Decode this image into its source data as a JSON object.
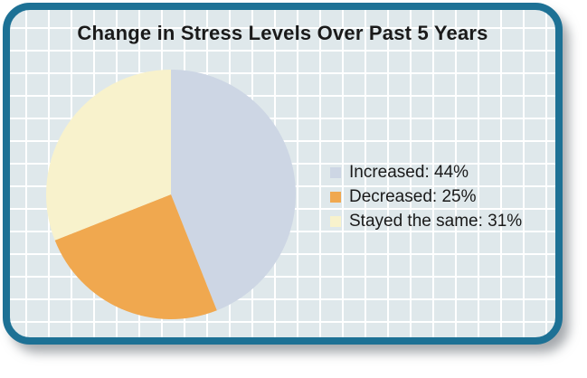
{
  "chart_data": {
    "type": "pie",
    "title": "Change in Stress Levels Over Past 5 Years",
    "legend_position": "right",
    "start_angle_deg": 0,
    "direction": "clockwise",
    "slices": [
      {
        "id": "increased",
        "label": "Increased",
        "value": 44,
        "color": "#cdd6e4",
        "display": "Increased: 44%"
      },
      {
        "id": "decreased",
        "label": "Decreased",
        "value": 25,
        "color": "#f0a84f",
        "display": "Decreased: 25%"
      },
      {
        "id": "stayed-the-same",
        "label": "Stayed the same",
        "value": 31,
        "color": "#f8f2cc",
        "display": "Stayed the same: 31%"
      }
    ]
  },
  "style": {
    "card_border_color": "#1d7195",
    "card_background": "#dfe8eb",
    "grid_line_color": "#ffffff",
    "text_color": "#1a1a1a"
  }
}
